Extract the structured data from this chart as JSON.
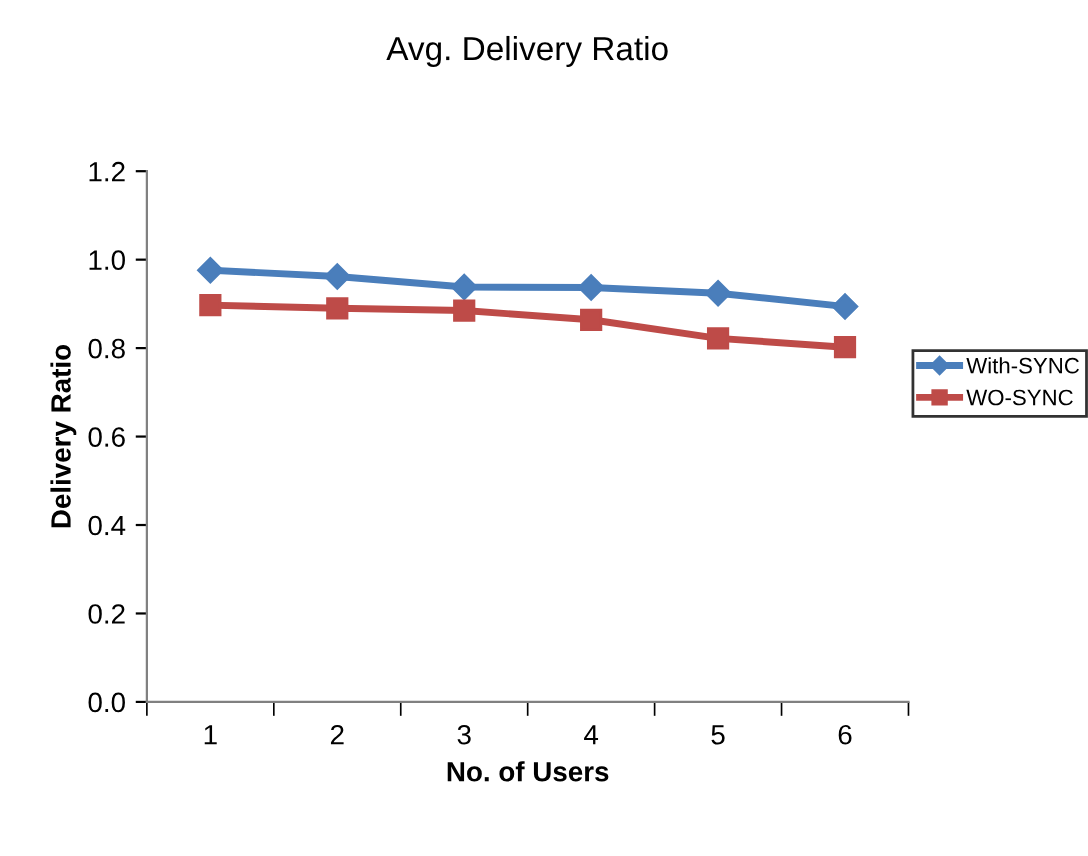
{
  "chart_data": {
    "type": "line",
    "title": "Avg. Delivery Ratio",
    "xlabel": "No. of Users",
    "ylabel": "Delivery Ratio",
    "categories": [
      "1",
      "2",
      "3",
      "4",
      "5",
      "6"
    ],
    "series": [
      {
        "name": "With-SYNC",
        "color": "#4a7ebb",
        "marker": "diamond",
        "values": [
          0.976,
          0.962,
          0.938,
          0.937,
          0.924,
          0.894
        ]
      },
      {
        "name": "WO-SYNC",
        "color": "#be4b48",
        "marker": "square",
        "values": [
          0.897,
          0.89,
          0.885,
          0.864,
          0.822,
          0.802
        ]
      }
    ],
    "ylim": [
      0,
      1.2
    ],
    "yticks": [
      "0.0",
      0.2,
      0.4,
      0.6,
      0.8,
      "1.0",
      1.2
    ],
    "grid": false,
    "legend": "right",
    "line_style": "solid"
  }
}
